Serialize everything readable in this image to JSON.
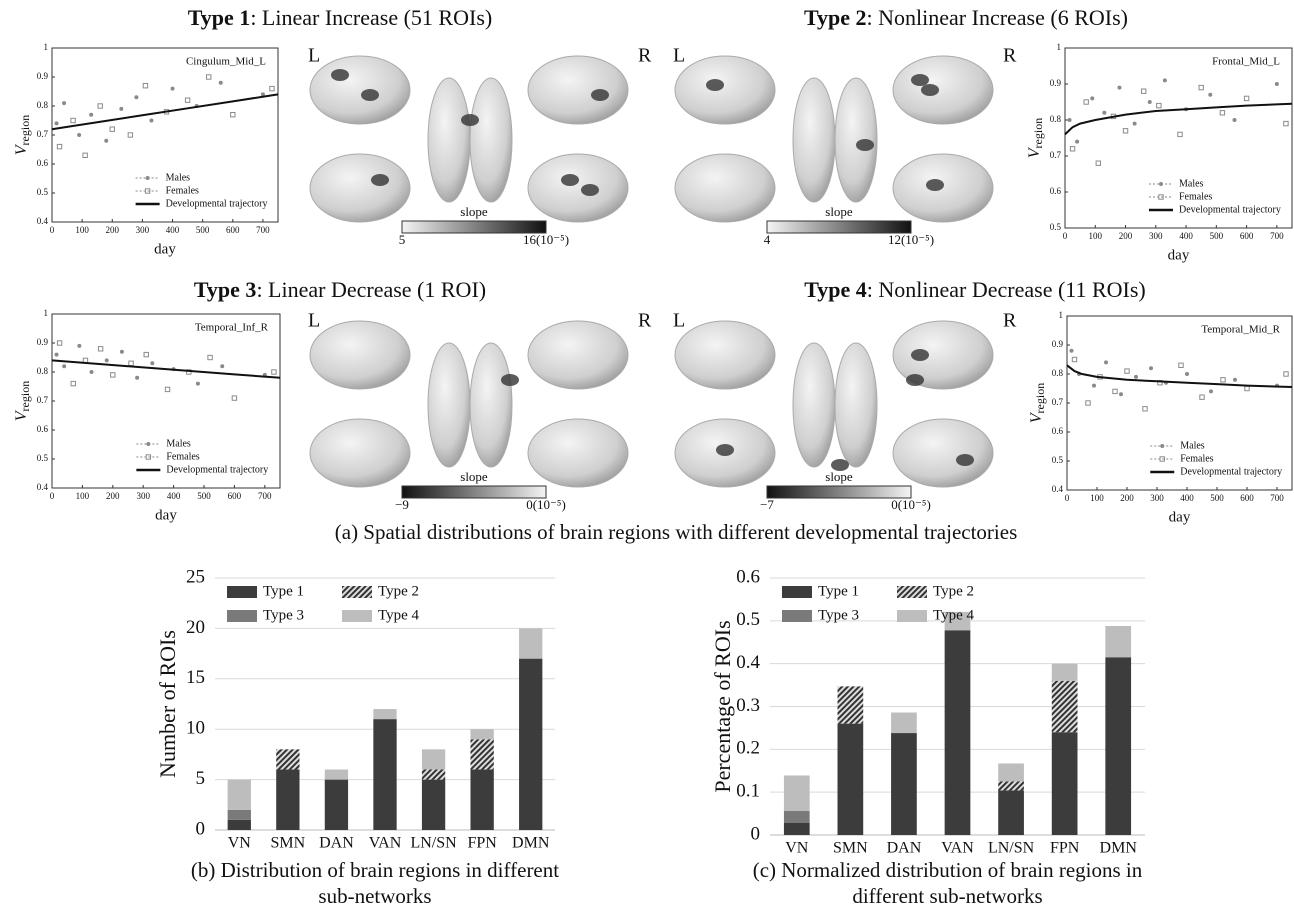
{
  "panels": [
    {
      "title_bold": "Type 1",
      "title": ": Linear Increase (51 ROIs)",
      "left": "L",
      "right": "R",
      "colorbar_label": "slope",
      "colorbar_min": "5",
      "colorbar_max": "16(10⁻⁵)",
      "colorbar_colors": [
        "#f4f4f4",
        "#111111"
      ]
    },
    {
      "title_bold": "Type 2",
      "title": ": Nonlinear Increase (6 ROIs)",
      "left": "L",
      "right": "R",
      "colorbar_label": "slope",
      "colorbar_min": "4",
      "colorbar_max": "12(10⁻⁵)",
      "colorbar_colors": [
        "#f4f4f4",
        "#111111"
      ]
    },
    {
      "title_bold": "Type 3",
      "title": ": Linear Decrease (1 ROI)",
      "left": "L",
      "right": "R",
      "colorbar_label": "slope",
      "colorbar_min": "−9",
      "colorbar_max": "0(10⁻⁵)",
      "colorbar_colors": [
        "#111111",
        "#f4f4f4"
      ]
    },
    {
      "title_bold": "Type 4",
      "title": ": Nonlinear Decrease (11 ROIs)",
      "left": "L",
      "right": "R",
      "colorbar_label": "slope",
      "colorbar_min": "−7",
      "colorbar_max": "0(10⁻⁵)",
      "colorbar_colors": [
        "#111111",
        "#f4f4f4"
      ]
    }
  ],
  "caption_a": "(a) Spatial distributions of brain regions with different developmental trajectories",
  "chart_data": [
    {
      "type": "scatter",
      "annotation": "Cingulum_Mid_L",
      "xlabel": "day",
      "ylabel": "V",
      "ylabel_sub": "region",
      "xlim": [
        0,
        750
      ],
      "xticks": [
        0,
        100,
        200,
        300,
        400,
        500,
        600,
        700
      ],
      "ylim": [
        0.4,
        1
      ],
      "yticks": [
        0.4,
        0.5,
        0.6,
        0.7,
        0.8,
        0.9,
        1
      ],
      "legend": "lower center",
      "series": [
        {
          "name": "Males",
          "type": "scatter",
          "marker": "circle",
          "color": "#8a8a8a",
          "x": [
            15,
            40,
            90,
            130,
            180,
            230,
            280,
            330,
            400,
            480,
            560,
            700
          ],
          "values": [
            0.74,
            0.81,
            0.7,
            0.77,
            0.68,
            0.79,
            0.83,
            0.75,
            0.86,
            0.8,
            0.88,
            0.84
          ]
        },
        {
          "name": "Females",
          "type": "scatter",
          "marker": "square",
          "color": "#8a8a8a",
          "x": [
            25,
            70,
            110,
            160,
            200,
            260,
            310,
            380,
            450,
            520,
            600,
            730
          ],
          "values": [
            0.66,
            0.75,
            0.63,
            0.8,
            0.72,
            0.7,
            0.87,
            0.78,
            0.82,
            0.9,
            0.77,
            0.86
          ]
        },
        {
          "name": "Developmental trajectory",
          "type": "line",
          "color": "#111111",
          "x": [
            0,
            150,
            300,
            450,
            600,
            750
          ],
          "values": [
            0.72,
            0.744,
            0.768,
            0.792,
            0.816,
            0.84
          ]
        }
      ]
    },
    {
      "type": "scatter",
      "annotation": "Frontal_Mid_L",
      "xlabel": "day",
      "ylabel": "V",
      "ylabel_sub": "region",
      "xlim": [
        0,
        750
      ],
      "xticks": [
        0,
        100,
        200,
        300,
        400,
        500,
        600,
        700
      ],
      "ylim": [
        0.5,
        1
      ],
      "yticks": [
        0.5,
        0.6,
        0.7,
        0.8,
        0.9,
        1
      ],
      "legend": "lower center",
      "series": [
        {
          "name": "Males",
          "type": "scatter",
          "marker": "circle",
          "color": "#8a8a8a",
          "x": [
            15,
            40,
            90,
            130,
            180,
            230,
            280,
            330,
            400,
            480,
            560,
            700
          ],
          "values": [
            0.8,
            0.74,
            0.86,
            0.82,
            0.89,
            0.79,
            0.85,
            0.91,
            0.83,
            0.87,
            0.8,
            0.9
          ]
        },
        {
          "name": "Females",
          "type": "scatter",
          "marker": "square",
          "color": "#8a8a8a",
          "x": [
            25,
            70,
            110,
            160,
            200,
            260,
            310,
            380,
            450,
            520,
            600,
            730
          ],
          "values": [
            0.72,
            0.85,
            0.68,
            0.81,
            0.77,
            0.88,
            0.84,
            0.76,
            0.89,
            0.82,
            0.86,
            0.79
          ]
        },
        {
          "name": "Developmental trajectory",
          "type": "line",
          "color": "#111111",
          "x": [
            0,
            25,
            50,
            100,
            200,
            300,
            400,
            500,
            600,
            750
          ],
          "values": [
            0.76,
            0.78,
            0.79,
            0.8,
            0.815,
            0.825,
            0.83,
            0.835,
            0.84,
            0.845
          ]
        }
      ]
    },
    {
      "type": "scatter",
      "annotation": "Temporal_Inf_R",
      "xlabel": "day",
      "ylabel": "V",
      "ylabel_sub": "region",
      "xlim": [
        0,
        750
      ],
      "xticks": [
        0,
        100,
        200,
        300,
        400,
        500,
        600,
        700
      ],
      "ylim": [
        0.4,
        1
      ],
      "yticks": [
        0.4,
        0.5,
        0.6,
        0.7,
        0.8,
        0.9,
        1
      ],
      "legend": "lower center",
      "series": [
        {
          "name": "Males",
          "type": "scatter",
          "marker": "circle",
          "color": "#8a8a8a",
          "x": [
            15,
            40,
            90,
            130,
            180,
            230,
            280,
            330,
            400,
            480,
            560,
            700
          ],
          "values": [
            0.86,
            0.82,
            0.89,
            0.8,
            0.84,
            0.87,
            0.78,
            0.83,
            0.81,
            0.76,
            0.82,
            0.79
          ]
        },
        {
          "name": "Females",
          "type": "scatter",
          "marker": "square",
          "color": "#8a8a8a",
          "x": [
            25,
            70,
            110,
            160,
            200,
            260,
            310,
            380,
            450,
            520,
            600,
            730
          ],
          "values": [
            0.9,
            0.76,
            0.84,
            0.88,
            0.79,
            0.83,
            0.86,
            0.74,
            0.8,
            0.85,
            0.71,
            0.8
          ]
        },
        {
          "name": "Developmental trajectory",
          "type": "line",
          "color": "#111111",
          "x": [
            0,
            150,
            300,
            450,
            600,
            750
          ],
          "values": [
            0.84,
            0.828,
            0.816,
            0.804,
            0.792,
            0.78
          ]
        }
      ]
    },
    {
      "type": "scatter",
      "annotation": "Temporal_Mid_R",
      "xlabel": "day",
      "ylabel": "V",
      "ylabel_sub": "region",
      "xlim": [
        0,
        750
      ],
      "xticks": [
        0,
        100,
        200,
        300,
        400,
        500,
        600,
        700
      ],
      "ylim": [
        0.4,
        1
      ],
      "yticks": [
        0.4,
        0.5,
        0.6,
        0.7,
        0.8,
        0.9,
        1
      ],
      "legend": "lower center",
      "series": [
        {
          "name": "Males",
          "type": "scatter",
          "marker": "circle",
          "color": "#8a8a8a",
          "x": [
            15,
            40,
            90,
            130,
            180,
            230,
            280,
            330,
            400,
            480,
            560,
            700
          ],
          "values": [
            0.88,
            0.8,
            0.76,
            0.84,
            0.73,
            0.79,
            0.82,
            0.77,
            0.8,
            0.74,
            0.78,
            0.76
          ]
        },
        {
          "name": "Females",
          "type": "scatter",
          "marker": "square",
          "color": "#8a8a8a",
          "x": [
            25,
            70,
            110,
            160,
            200,
            260,
            310,
            380,
            450,
            520,
            600,
            730
          ],
          "values": [
            0.85,
            0.7,
            0.79,
            0.74,
            0.81,
            0.68,
            0.77,
            0.83,
            0.72,
            0.78,
            0.75,
            0.8
          ]
        },
        {
          "name": "Developmental trajectory",
          "type": "line",
          "color": "#111111",
          "x": [
            0,
            25,
            50,
            100,
            200,
            300,
            400,
            500,
            600,
            750
          ],
          "values": [
            0.83,
            0.81,
            0.8,
            0.79,
            0.78,
            0.775,
            0.77,
            0.765,
            0.76,
            0.755
          ]
        }
      ]
    },
    {
      "type": "bar",
      "stacked": true,
      "ylabel": "Number of ROIs",
      "caption": [
        "(b) Distribution of brain regions in different",
        "sub-networks"
      ],
      "categories": [
        "VN",
        "SMN",
        "DAN",
        "VAN",
        "LN/SN",
        "FPN",
        "DMN"
      ],
      "ylim": [
        0,
        25
      ],
      "yticks": [
        0,
        5,
        10,
        15,
        20,
        25
      ],
      "grid": true,
      "legend": "upper left",
      "series": [
        {
          "name": "Type 1",
          "color": "#3c3c3c",
          "values": [
            1,
            6,
            5,
            11,
            5,
            6,
            17
          ]
        },
        {
          "name": "Type 2",
          "color": "#4a4a4a",
          "hatch": true,
          "values": [
            0,
            2,
            0,
            0,
            1,
            3,
            0
          ]
        },
        {
          "name": "Type 3",
          "color": "#7a7a7a",
          "values": [
            1,
            0,
            0,
            0,
            0,
            0,
            0
          ]
        },
        {
          "name": "Type 4",
          "color": "#bdbdbd",
          "values": [
            3,
            0,
            1,
            1,
            2,
            1,
            3
          ]
        }
      ]
    },
    {
      "type": "bar",
      "stacked": true,
      "ylabel": "Percentage of ROIs",
      "caption": [
        "(c) Normalized distribution of brain regions in",
        "different sub-networks"
      ],
      "categories": [
        "VN",
        "SMN",
        "DAN",
        "VAN",
        "LN/SN",
        "FPN",
        "DMN"
      ],
      "ylim": [
        0,
        0.6
      ],
      "yticks": [
        0,
        0.1,
        0.2,
        0.3,
        0.4,
        0.5,
        0.6
      ],
      "grid": true,
      "legend": "upper left",
      "series": [
        {
          "name": "Type 1",
          "color": "#3c3c3c",
          "values": [
            0.028,
            0.26,
            0.238,
            0.478,
            0.104,
            0.24,
            0.415
          ]
        },
        {
          "name": "Type 2",
          "color": "#4a4a4a",
          "hatch": true,
          "values": [
            0,
            0.087,
            0,
            0,
            0.021,
            0.12,
            0
          ]
        },
        {
          "name": "Type 3",
          "color": "#7a7a7a",
          "values": [
            0.028,
            0,
            0,
            0,
            0,
            0,
            0
          ]
        },
        {
          "name": "Type 4",
          "color": "#bdbdbd",
          "values": [
            0.083,
            0,
            0.048,
            0.043,
            0.042,
            0.04,
            0.073
          ]
        }
      ]
    }
  ]
}
